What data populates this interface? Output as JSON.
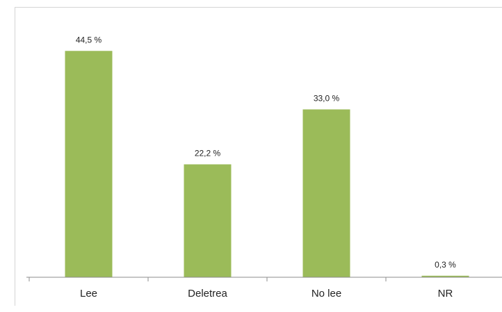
{
  "chart_data": {
    "type": "bar",
    "categories": [
      "Lee",
      "Deletrea",
      "No lee",
      "NR"
    ],
    "values": [
      44.5,
      22.2,
      33.0,
      0.3
    ],
    "value_labels": [
      "44,5 %",
      "22,2 %",
      "33,0 %",
      "0,3 %"
    ],
    "ylim": [
      0,
      50
    ],
    "grid": false,
    "legend": "none",
    "bar_color": "#9bbb59"
  }
}
